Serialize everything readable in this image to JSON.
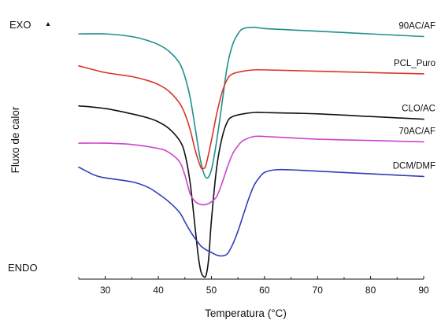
{
  "chart_data": {
    "type": "line",
    "title": "",
    "xlabel": "Temperatura (°C)",
    "ylabel": "Fluxo de calor",
    "xlim": [
      25,
      90
    ],
    "xticks": [
      30,
      40,
      50,
      60,
      70,
      80,
      90
    ],
    "y_ticks_shown": false,
    "grid": false,
    "annotations": {
      "exo": "EXO",
      "endo": "ENDO"
    },
    "series": [
      {
        "name": "90AC/AF",
        "color": "#1f8f8c",
        "x": [
          25,
          30,
          35,
          38,
          40,
          42,
          44,
          45,
          46,
          47,
          48,
          49,
          50,
          51,
          52,
          53,
          54,
          55,
          56,
          58,
          60,
          65,
          70,
          80,
          90
        ],
        "y": [
          0.92,
          0.92,
          0.91,
          0.895,
          0.88,
          0.855,
          0.81,
          0.76,
          0.68,
          0.56,
          0.44,
          0.38,
          0.41,
          0.52,
          0.66,
          0.8,
          0.88,
          0.92,
          0.94,
          0.945,
          0.94,
          0.935,
          0.93,
          0.92,
          0.91
        ]
      },
      {
        "name": "PCL_Puro",
        "color": "#d9342b",
        "x": [
          25,
          30,
          35,
          38,
          40,
          42,
          44,
          45,
          46,
          47,
          48,
          48.5,
          49,
          50,
          51,
          52,
          53,
          54,
          56,
          58,
          60,
          70,
          80,
          90
        ],
        "y": [
          0.8,
          0.775,
          0.76,
          0.745,
          0.73,
          0.705,
          0.66,
          0.62,
          0.56,
          0.48,
          0.42,
          0.415,
          0.43,
          0.52,
          0.62,
          0.7,
          0.75,
          0.77,
          0.78,
          0.785,
          0.785,
          0.78,
          0.775,
          0.77
        ]
      },
      {
        "name": "CLO/AC",
        "color": "#111111",
        "x": [
          25,
          30,
          35,
          38,
          40,
          42,
          44,
          45,
          46,
          47,
          47.5,
          48,
          48.5,
          49,
          49.5,
          50,
          51,
          52,
          53,
          54,
          56,
          58,
          60,
          70,
          80,
          90
        ],
        "y": [
          0.65,
          0.64,
          0.62,
          0.605,
          0.59,
          0.565,
          0.52,
          0.47,
          0.36,
          0.18,
          0.09,
          0.03,
          0.01,
          0.015,
          0.08,
          0.22,
          0.42,
          0.53,
          0.59,
          0.61,
          0.62,
          0.625,
          0.625,
          0.62,
          0.61,
          0.6
        ]
      },
      {
        "name": "70AC/AF",
        "color": "#cc44cc",
        "x": [
          25,
          30,
          35,
          40,
          42,
          44,
          45,
          46,
          47,
          48,
          49,
          50,
          51,
          52,
          53,
          54,
          55,
          56,
          58,
          60,
          65,
          70,
          80,
          90
        ],
        "y": [
          0.51,
          0.51,
          0.505,
          0.49,
          0.475,
          0.44,
          0.39,
          0.32,
          0.29,
          0.28,
          0.28,
          0.29,
          0.31,
          0.36,
          0.42,
          0.47,
          0.5,
          0.52,
          0.535,
          0.535,
          0.53,
          0.525,
          0.52,
          0.515
        ]
      },
      {
        "name": "DCM/DMF",
        "color": "#2f3fb5",
        "x": [
          25,
          28,
          30,
          35,
          38,
          40,
          42,
          44,
          45,
          46,
          47,
          48,
          49,
          50,
          51,
          52,
          53,
          54,
          55,
          56,
          57,
          58,
          59,
          60,
          62,
          65,
          70,
          80,
          90
        ],
        "y": [
          0.42,
          0.39,
          0.38,
          0.365,
          0.345,
          0.32,
          0.29,
          0.25,
          0.215,
          0.18,
          0.15,
          0.125,
          0.11,
          0.1,
          0.09,
          0.087,
          0.095,
          0.13,
          0.18,
          0.24,
          0.3,
          0.35,
          0.38,
          0.4,
          0.41,
          0.41,
          0.405,
          0.395,
          0.385
        ]
      }
    ]
  }
}
